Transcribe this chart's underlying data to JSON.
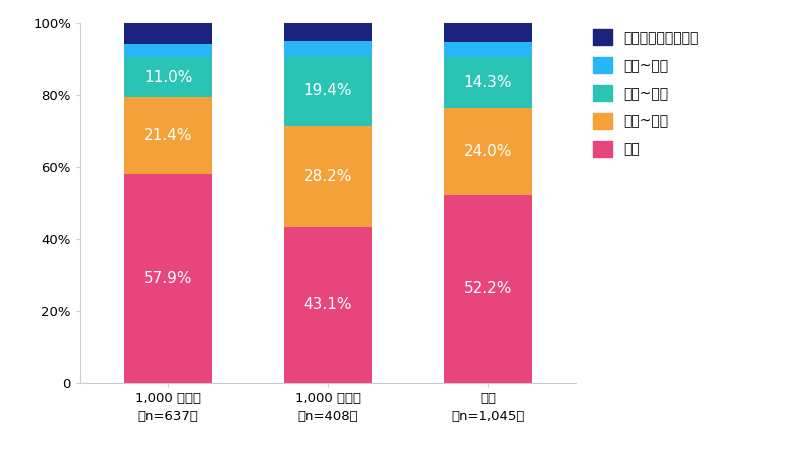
{
  "categories": [
    "1,000 人以上\n（n=637）",
    "1,000 人未満\n（n=408）",
    "全体\n（n=1,045）"
  ],
  "series": [
    {
      "label": "毎日",
      "color": "#E8457C",
      "values": [
        57.9,
        43.1,
        52.2
      ]
    },
    {
      "label": "週３~４回",
      "color": "#F5A13A",
      "values": [
        21.4,
        28.2,
        24.0
      ]
    },
    {
      "label": "週１~２回",
      "color": "#2BC4B4",
      "values": [
        11.0,
        19.4,
        14.3
      ]
    },
    {
      "label": "月１~２回",
      "color": "#29B6F6",
      "values": [
        3.7,
        4.3,
        4.1
      ]
    },
    {
      "label": "ほぼ利用していない",
      "color": "#1A237E",
      "values": [
        6.0,
        5.0,
        5.4
      ]
    }
  ],
  "ylim": [
    0,
    100
  ],
  "yticks": [
    0,
    20,
    40,
    60,
    80,
    100
  ],
  "yticklabels": [
    "0",
    "20%",
    "40%",
    "60%",
    "80%",
    "100%"
  ],
  "bar_width": 0.55,
  "label_fontsize": 11,
  "legend_fontsize": 10,
  "tick_fontsize": 9.5,
  "background_color": "#ffffff",
  "pct_labels": {
    "毎日": [
      "57.9%",
      "43.1%",
      "52.2%"
    ],
    "週３~４回": [
      "21.4%",
      "28.2%",
      "24.0%"
    ],
    "週１~２回": [
      "11.0%",
      "19.4%",
      "14.3%"
    ],
    "月１~２回": [
      "",
      "",
      ""
    ],
    "ほぼ利用していない": [
      "",
      "",
      ""
    ]
  }
}
